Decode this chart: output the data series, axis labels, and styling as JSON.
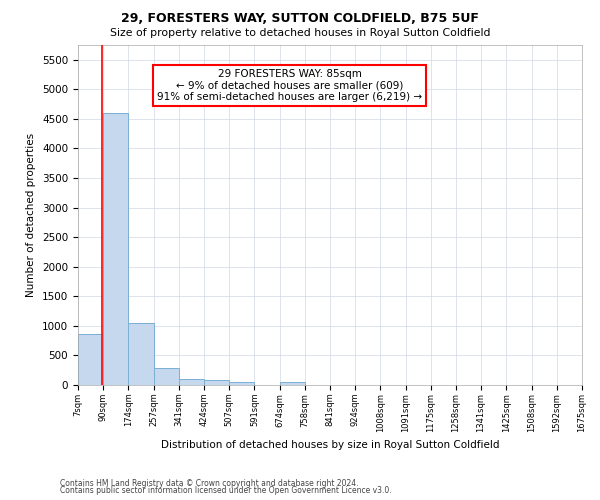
{
  "title1": "29, FORESTERS WAY, SUTTON COLDFIELD, B75 5UF",
  "title2": "Size of property relative to detached houses in Royal Sutton Coldfield",
  "xlabel": "Distribution of detached houses by size in Royal Sutton Coldfield",
  "ylabel": "Number of detached properties",
  "footnote1": "Contains HM Land Registry data © Crown copyright and database right 2024.",
  "footnote2": "Contains public sector information licensed under the Open Government Licence v3.0.",
  "annotation_title": "29 FORESTERS WAY: 85sqm",
  "annotation_line2": "← 9% of detached houses are smaller (609)",
  "annotation_line3": "91% of semi-detached houses are larger (6,219) →",
  "bar_color": "#c5d8ee",
  "bar_edge_color": "#7aafd4",
  "vline_color": "red",
  "annotation_box_color": "white",
  "annotation_box_edge": "red",
  "bins": [
    "7sqm",
    "90sqm",
    "174sqm",
    "257sqm",
    "341sqm",
    "424sqm",
    "507sqm",
    "591sqm",
    "674sqm",
    "758sqm",
    "841sqm",
    "924sqm",
    "1008sqm",
    "1091sqm",
    "1175sqm",
    "1258sqm",
    "1341sqm",
    "1425sqm",
    "1508sqm",
    "1592sqm",
    "1675sqm"
  ],
  "values": [
    855,
    4600,
    1050,
    280,
    105,
    80,
    55,
    0,
    55,
    0,
    0,
    0,
    0,
    0,
    0,
    0,
    0,
    0,
    0,
    0
  ],
  "bin_edges": [
    7,
    90,
    174,
    257,
    341,
    424,
    507,
    591,
    674,
    758,
    841,
    924,
    1008,
    1091,
    1175,
    1258,
    1341,
    1425,
    1508,
    1592,
    1675
  ],
  "ylim": [
    0,
    5750
  ],
  "yticks": [
    0,
    500,
    1000,
    1500,
    2000,
    2500,
    3000,
    3500,
    4000,
    4500,
    5000,
    5500
  ],
  "vline_x": 85,
  "background_color": "#ffffff",
  "grid_color": "#d0d8e8"
}
